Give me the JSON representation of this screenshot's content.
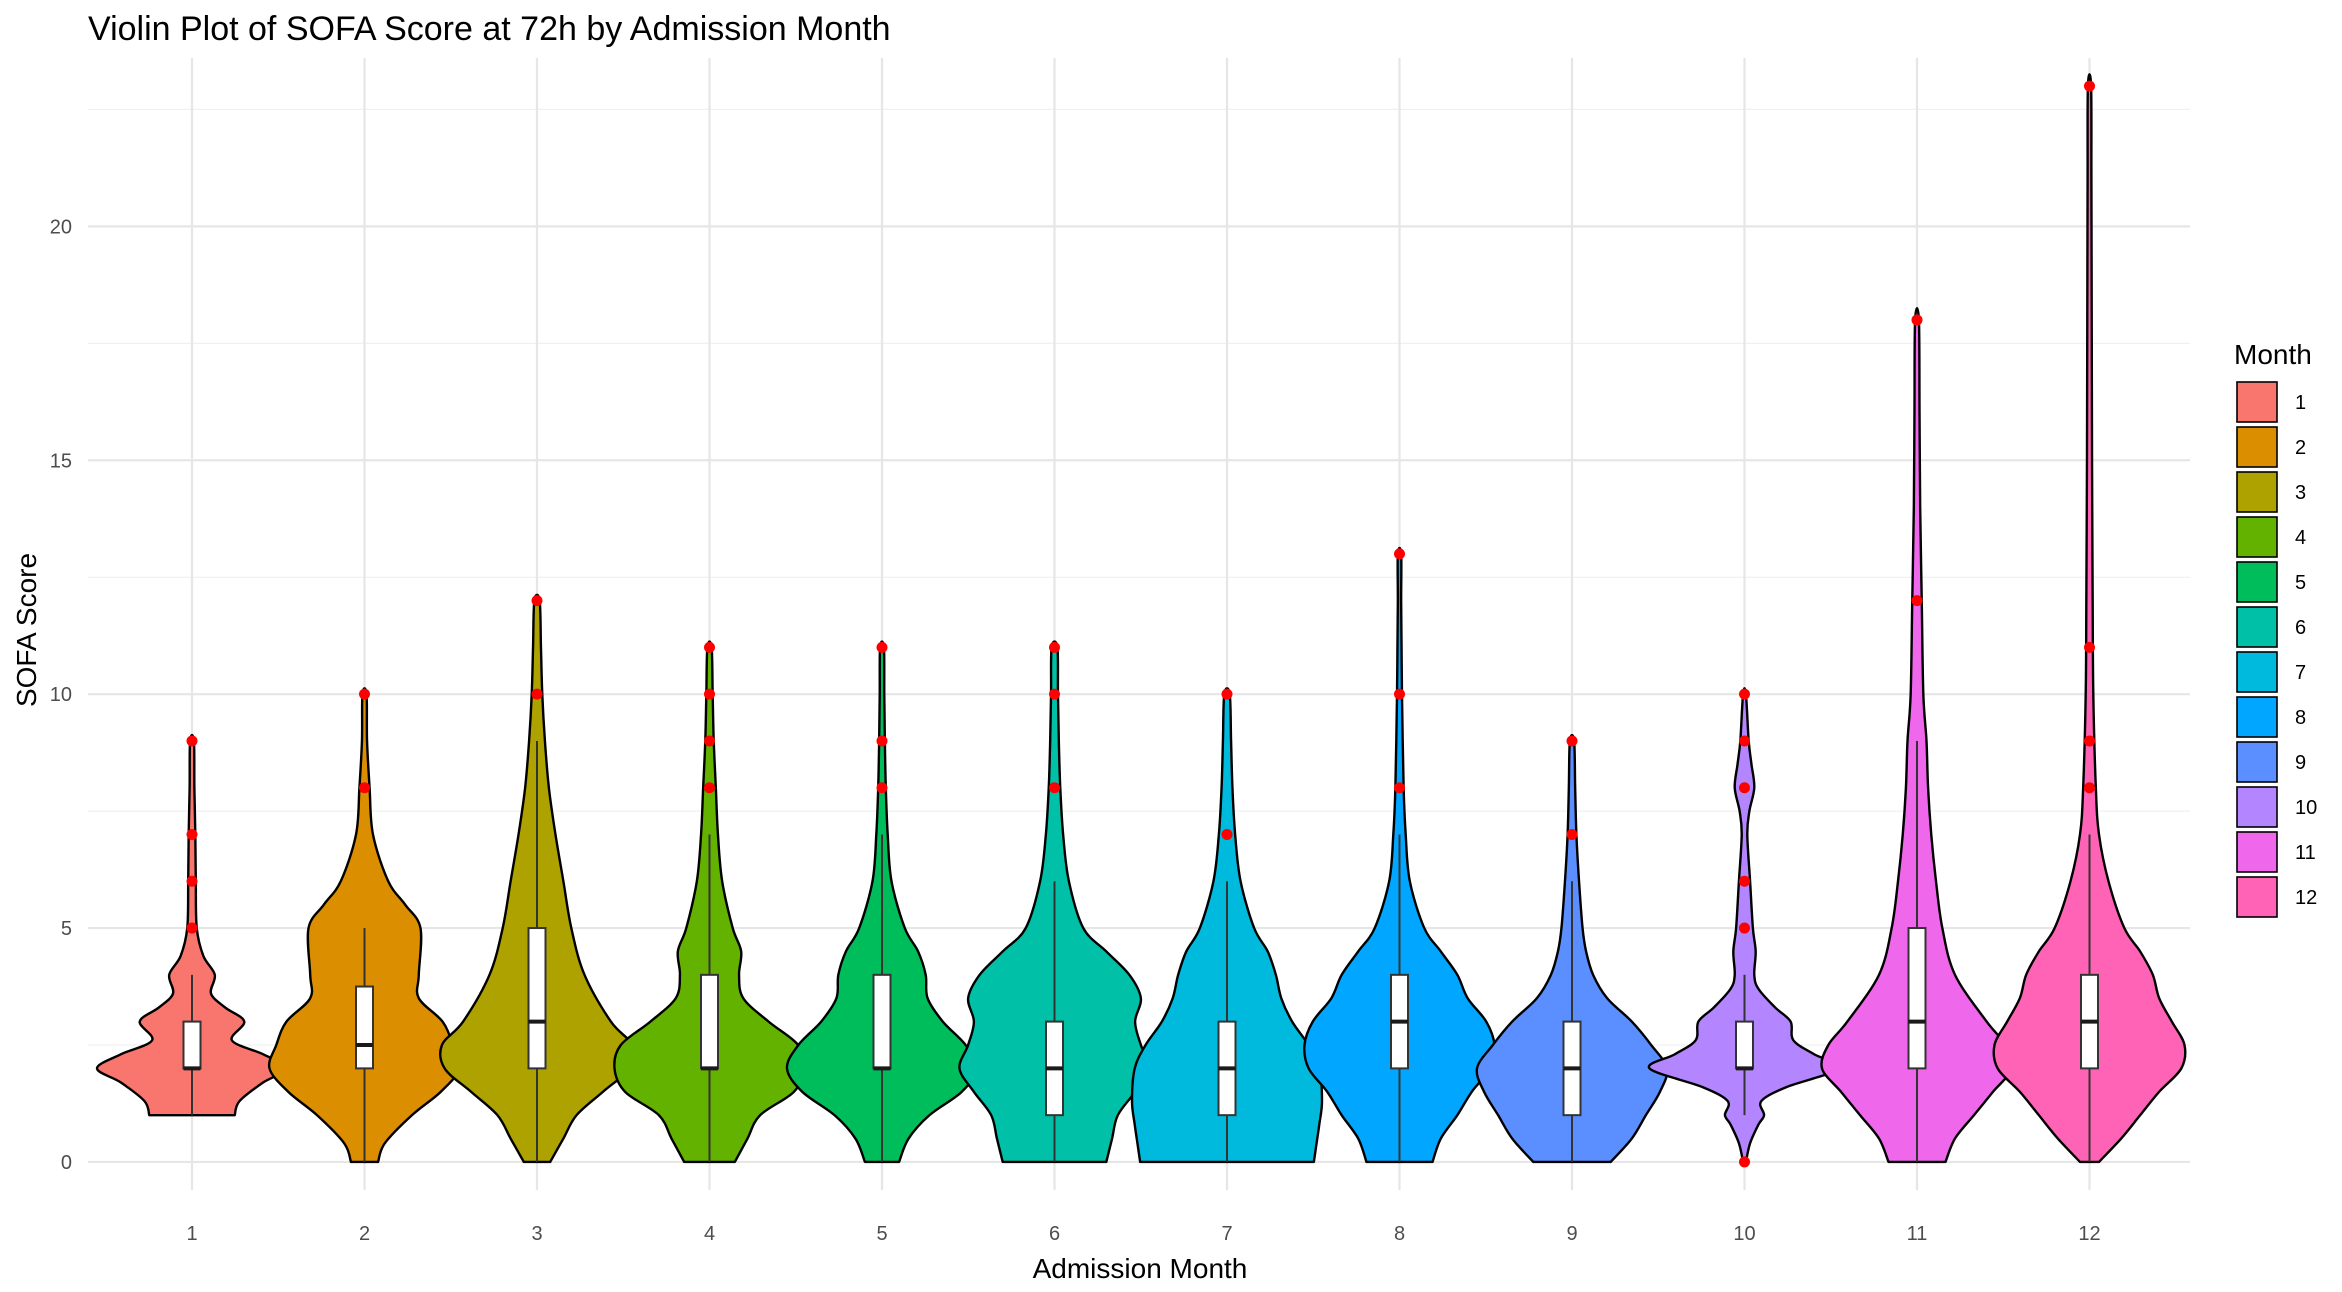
{
  "chart_data": {
    "type": "violin",
    "title": "Violin Plot of SOFA Score at 72h by Admission Month",
    "xlabel": "Admission Month",
    "ylabel": "SOFA Score",
    "ylim": [
      -0.6,
      23.6
    ],
    "y_ticks": [
      0,
      5,
      10,
      15,
      20
    ],
    "grid": true,
    "legend": {
      "title": "Month",
      "position": "right"
    },
    "categories": [
      "1",
      "2",
      "3",
      "4",
      "5",
      "6",
      "7",
      "8",
      "9",
      "10",
      "11",
      "12"
    ],
    "colors": [
      "#F8766D",
      "#DB8E00",
      "#AEA200",
      "#64B200",
      "#00BD5C",
      "#00C1A7",
      "#00BADE",
      "#00A6FF",
      "#5B8FFF",
      "#B385FF",
      "#EF67EB",
      "#FF63B6"
    ],
    "series": [
      {
        "name": "1",
        "min": 1,
        "q1": 2,
        "median": 2,
        "q3": 3,
        "max": 9,
        "whisker_low": 1,
        "whisker_high": 4,
        "outliers": [
          5,
          6,
          7,
          9
        ],
        "density": [
          [
            1,
            0.45
          ],
          [
            1.3,
            0.5
          ],
          [
            1.7,
            0.75
          ],
          [
            2,
            1.0
          ],
          [
            2.3,
            0.75
          ],
          [
            2.6,
            0.42
          ],
          [
            3,
            0.55
          ],
          [
            3.3,
            0.35
          ],
          [
            3.6,
            0.2
          ],
          [
            4,
            0.24
          ],
          [
            4.4,
            0.12
          ],
          [
            5,
            0.05
          ],
          [
            6,
            0.04
          ],
          [
            7,
            0.035
          ],
          [
            8,
            0.025
          ],
          [
            9,
            0.02
          ]
        ]
      },
      {
        "name": "2",
        "min": 0,
        "q1": 2,
        "median": 2.5,
        "q3": 3.75,
        "max": 10,
        "whisker_low": 0,
        "whisker_high": 5,
        "outliers": [
          8,
          10
        ],
        "density": [
          [
            0,
            0.08
          ],
          [
            0.4,
            0.12
          ],
          [
            1,
            0.28
          ],
          [
            1.5,
            0.45
          ],
          [
            2,
            0.56
          ],
          [
            2.5,
            0.52
          ],
          [
            3,
            0.46
          ],
          [
            3.5,
            0.32
          ],
          [
            4,
            0.32
          ],
          [
            5,
            0.33
          ],
          [
            5.5,
            0.24
          ],
          [
            6,
            0.14
          ],
          [
            7,
            0.05
          ],
          [
            8,
            0.03
          ],
          [
            9,
            0.015
          ],
          [
            10,
            0.012
          ]
        ]
      },
      {
        "name": "3",
        "min": 0,
        "q1": 2,
        "median": 3,
        "q3": 5,
        "max": 12,
        "whisker_low": 0,
        "whisker_high": 9,
        "outliers": [
          10,
          12
        ],
        "density": [
          [
            0,
            0.05
          ],
          [
            0.5,
            0.1
          ],
          [
            1,
            0.15
          ],
          [
            1.5,
            0.25
          ],
          [
            2,
            0.35
          ],
          [
            2.5,
            0.36
          ],
          [
            3,
            0.28
          ],
          [
            4,
            0.18
          ],
          [
            5,
            0.13
          ],
          [
            6,
            0.1
          ],
          [
            7,
            0.07
          ],
          [
            8,
            0.045
          ],
          [
            9,
            0.03
          ],
          [
            10,
            0.02
          ],
          [
            11,
            0.015
          ],
          [
            12,
            0.01
          ]
        ]
      },
      {
        "name": "4",
        "min": 0,
        "q1": 2,
        "median": 2,
        "q3": 4,
        "max": 11,
        "whisker_low": 0,
        "whisker_high": 7,
        "outliers": [
          8,
          9,
          10,
          11
        ],
        "density": [
          [
            0,
            0.12
          ],
          [
            0.5,
            0.18
          ],
          [
            1,
            0.24
          ],
          [
            1.5,
            0.4
          ],
          [
            2,
            0.45
          ],
          [
            2.5,
            0.42
          ],
          [
            3,
            0.28
          ],
          [
            3.5,
            0.16
          ],
          [
            4,
            0.14
          ],
          [
            4.5,
            0.15
          ],
          [
            5,
            0.11
          ],
          [
            6,
            0.06
          ],
          [
            7,
            0.04
          ],
          [
            8,
            0.03
          ],
          [
            9,
            0.02
          ],
          [
            10,
            0.015
          ],
          [
            11,
            0.01
          ]
        ]
      },
      {
        "name": "5",
        "min": 0,
        "q1": 2,
        "median": 2,
        "q3": 4,
        "max": 11,
        "whisker_low": 0,
        "whisker_high": 7,
        "outliers": [
          8,
          9,
          11
        ],
        "density": [
          [
            0,
            0.09
          ],
          [
            0.5,
            0.14
          ],
          [
            1,
            0.25
          ],
          [
            1.5,
            0.42
          ],
          [
            2,
            0.5
          ],
          [
            2.5,
            0.44
          ],
          [
            3,
            0.32
          ],
          [
            3.5,
            0.24
          ],
          [
            4,
            0.23
          ],
          [
            4.5,
            0.19
          ],
          [
            5,
            0.12
          ],
          [
            6,
            0.05
          ],
          [
            7,
            0.03
          ],
          [
            8,
            0.02
          ],
          [
            9,
            0.015
          ],
          [
            10,
            0.012
          ],
          [
            11,
            0.01
          ]
        ]
      },
      {
        "name": "6",
        "min": 0,
        "q1": 1,
        "median": 2,
        "q3": 3,
        "max": 11,
        "whisker_low": 0,
        "whisker_high": 6,
        "outliers": [
          8,
          10,
          11
        ],
        "density": [
          [
            0,
            0.18
          ],
          [
            0.5,
            0.2
          ],
          [
            1,
            0.22
          ],
          [
            1.5,
            0.28
          ],
          [
            2,
            0.33
          ],
          [
            2.5,
            0.3
          ],
          [
            3,
            0.28
          ],
          [
            3.5,
            0.3
          ],
          [
            4,
            0.26
          ],
          [
            4.5,
            0.18
          ],
          [
            5,
            0.1
          ],
          [
            6,
            0.05
          ],
          [
            7,
            0.03
          ],
          [
            8,
            0.02
          ],
          [
            9,
            0.015
          ],
          [
            10,
            0.012
          ],
          [
            11,
            0.01
          ]
        ]
      },
      {
        "name": "7",
        "min": 0,
        "q1": 1,
        "median": 2,
        "q3": 3,
        "max": 10,
        "whisker_low": 0,
        "whisker_high": 6,
        "outliers": [
          7,
          10
        ],
        "density": [
          [
            0,
            0.32
          ],
          [
            0.4,
            0.33
          ],
          [
            0.8,
            0.34
          ],
          [
            1.3,
            0.35
          ],
          [
            2,
            0.34
          ],
          [
            2.5,
            0.3
          ],
          [
            3,
            0.24
          ],
          [
            3.5,
            0.2
          ],
          [
            4,
            0.18
          ],
          [
            4.5,
            0.15
          ],
          [
            5,
            0.1
          ],
          [
            6,
            0.05
          ],
          [
            7,
            0.03
          ],
          [
            8,
            0.02
          ],
          [
            9,
            0.015
          ],
          [
            10,
            0.01
          ]
        ]
      },
      {
        "name": "8",
        "min": 0,
        "q1": 2,
        "median": 3,
        "q3": 4,
        "max": 13,
        "whisker_low": 0,
        "whisker_high": 7,
        "outliers": [
          8,
          10,
          13
        ],
        "density": [
          [
            0,
            0.16
          ],
          [
            0.5,
            0.2
          ],
          [
            1,
            0.28
          ],
          [
            1.5,
            0.35
          ],
          [
            2,
            0.44
          ],
          [
            2.5,
            0.46
          ],
          [
            3,
            0.42
          ],
          [
            3.5,
            0.33
          ],
          [
            4,
            0.28
          ],
          [
            4.5,
            0.2
          ],
          [
            5,
            0.12
          ],
          [
            6,
            0.05
          ],
          [
            7,
            0.03
          ],
          [
            8,
            0.02
          ],
          [
            10,
            0.012
          ],
          [
            11,
            0.01
          ],
          [
            12,
            0.008
          ],
          [
            13,
            0.008
          ]
        ]
      },
      {
        "name": "9",
        "min": 0,
        "q1": 1,
        "median": 2,
        "q3": 3,
        "max": 9,
        "whisker_low": 0,
        "whisker_high": 6,
        "outliers": [
          7,
          9
        ],
        "density": [
          [
            0,
            0.22
          ],
          [
            0.5,
            0.34
          ],
          [
            1,
            0.42
          ],
          [
            1.5,
            0.5
          ],
          [
            2,
            0.54
          ],
          [
            2.5,
            0.45
          ],
          [
            3,
            0.34
          ],
          [
            3.5,
            0.2
          ],
          [
            4,
            0.12
          ],
          [
            4.5,
            0.08
          ],
          [
            5,
            0.06
          ],
          [
            6,
            0.04
          ],
          [
            7,
            0.025
          ],
          [
            8,
            0.018
          ],
          [
            9,
            0.012
          ]
        ]
      },
      {
        "name": "10",
        "min": 0,
        "q1": 2,
        "median": 2,
        "q3": 3,
        "max": 10,
        "whisker_low": 1,
        "whisker_high": 4,
        "outliers": [
          0,
          5,
          6,
          8,
          9,
          10
        ],
        "density": [
          [
            0,
            0.01
          ],
          [
            0.4,
            0.04
          ],
          [
            0.8,
            0.1
          ],
          [
            1,
            0.14
          ],
          [
            1.3,
            0.12
          ],
          [
            1.6,
            0.3
          ],
          [
            2,
            0.68
          ],
          [
            2.3,
            0.5
          ],
          [
            2.6,
            0.35
          ],
          [
            3,
            0.33
          ],
          [
            3.3,
            0.22
          ],
          [
            3.7,
            0.1
          ],
          [
            4,
            0.07
          ],
          [
            4.5,
            0.08
          ],
          [
            5,
            0.06
          ],
          [
            6,
            0.04
          ],
          [
            7,
            0.02
          ],
          [
            7.5,
            0.035
          ],
          [
            8,
            0.07
          ],
          [
            8.5,
            0.05
          ],
          [
            9,
            0.03
          ],
          [
            10,
            0.01
          ]
        ]
      },
      {
        "name": "11",
        "min": 0,
        "q1": 2,
        "median": 3,
        "q3": 5,
        "max": 18,
        "whisker_low": 0,
        "whisker_high": 9,
        "outliers": [
          12,
          18
        ],
        "density": [
          [
            0,
            0.09
          ],
          [
            0.5,
            0.12
          ],
          [
            1,
            0.18
          ],
          [
            1.5,
            0.24
          ],
          [
            2,
            0.3
          ],
          [
            2.5,
            0.28
          ],
          [
            3,
            0.22
          ],
          [
            4,
            0.12
          ],
          [
            5,
            0.08
          ],
          [
            6,
            0.06
          ],
          [
            7,
            0.045
          ],
          [
            8,
            0.035
          ],
          [
            9,
            0.03
          ],
          [
            10,
            0.02
          ],
          [
            12,
            0.015
          ],
          [
            14,
            0.01
          ],
          [
            16,
            0.008
          ],
          [
            18,
            0.006
          ]
        ]
      },
      {
        "name": "12",
        "min": 0,
        "q1": 2,
        "median": 3,
        "q3": 4,
        "max": 23,
        "whisker_low": 0,
        "whisker_high": 7,
        "outliers": [
          8,
          9,
          11,
          23
        ],
        "density": [
          [
            0,
            0.03
          ],
          [
            0.5,
            0.1
          ],
          [
            1,
            0.16
          ],
          [
            1.5,
            0.22
          ],
          [
            2,
            0.29
          ],
          [
            2.5,
            0.3
          ],
          [
            3,
            0.26
          ],
          [
            3.5,
            0.22
          ],
          [
            4,
            0.2
          ],
          [
            4.5,
            0.16
          ],
          [
            5,
            0.11
          ],
          [
            6,
            0.06
          ],
          [
            7,
            0.03
          ],
          [
            8,
            0.02
          ],
          [
            10,
            0.012
          ],
          [
            12,
            0.01
          ],
          [
            15,
            0.008
          ],
          [
            18,
            0.007
          ],
          [
            21,
            0.006
          ],
          [
            23,
            0.005
          ]
        ]
      }
    ]
  }
}
